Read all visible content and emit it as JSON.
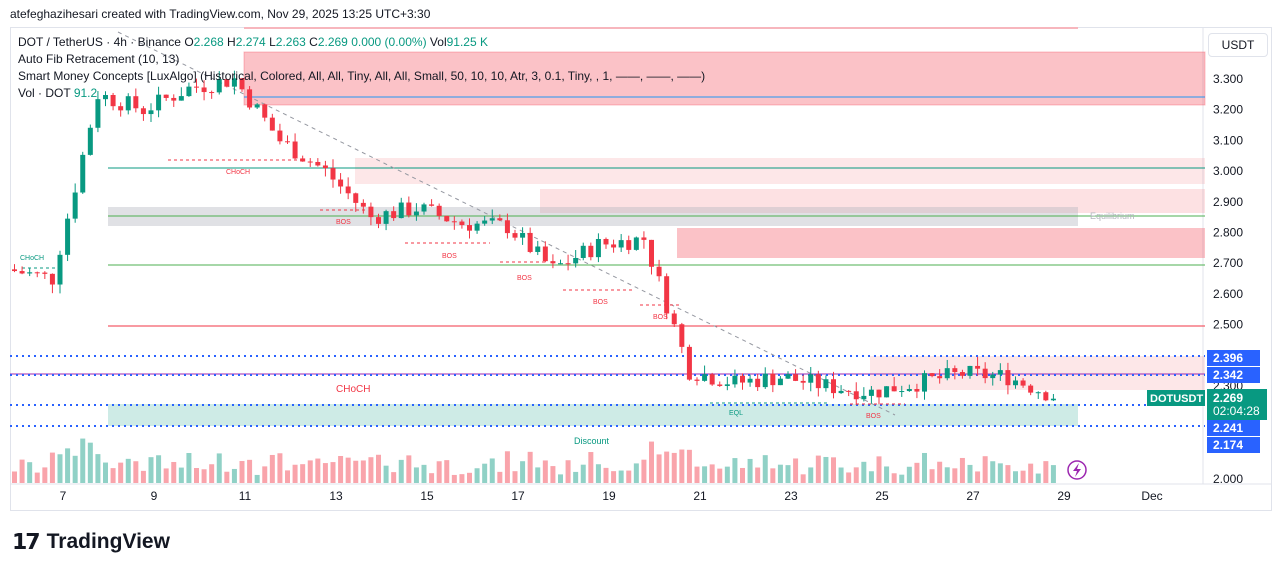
{
  "header": {
    "text": "atefeghazihesari created with TradingView.com, Nov 29, 2025 13:25 UTC+3:30"
  },
  "legend": {
    "symbol": "DOT / TetherUS · 4h · Binance",
    "o_label": "O",
    "o": "2.268",
    "h_label": "H",
    "h": "2.274",
    "l_label": "L",
    "l": "2.263",
    "c_label": "C",
    "c": "2.269",
    "change": "0.000 (0.00%)",
    "vol_label": "Vol",
    "vol": "91.25 K",
    "ind1": "Auto Fib Retracement (10, 13)",
    "ind2": "Smart Money Concepts [LuxAlgo] (Historical, Colored, All, All, Tiny, All, All, Small, 50, 10, 10, Atr, 3, 0.1, Tiny, , 1, ——, ——, ——)",
    "ind3": "Vol · DOT",
    "ind3_val": "91.2"
  },
  "currency": "USDT",
  "price_ticks": [
    "3.300",
    "3.200",
    "3.100",
    "3.000",
    "2.900",
    "2.800",
    "2.700",
    "2.600",
    "2.500",
    "2.300",
    "2.000"
  ],
  "time_ticks": [
    "7",
    "9",
    "11",
    "13",
    "15",
    "17",
    "19",
    "21",
    "23",
    "25",
    "27",
    "29",
    "Dec"
  ],
  "price_badges": [
    {
      "text": "2.396",
      "price": 2.396
    },
    {
      "text": "2.342",
      "price": 2.342
    },
    {
      "text": "2.241",
      "price": 2.241
    },
    {
      "text": "2.174",
      "price": 2.174
    }
  ],
  "current": {
    "ticker": "DOTUSDT",
    "price": "2.269",
    "countdown": "02:04:28",
    "value": 2.269
  },
  "annotations": {
    "choch": "CHoCH",
    "bos": "BOS",
    "eql": "EQL",
    "equilibrium": "Equilibrium",
    "discount": "Discount"
  },
  "colors": {
    "up": "#089981",
    "down": "#f23645",
    "accent": "#2962ff"
  },
  "brand": "TradingView",
  "chart_data": {
    "type": "candlestick",
    "title": "DOT / TetherUS · 4h · Binance",
    "y_axis": "USDT",
    "x_ticks": [
      "7",
      "9",
      "11",
      "13",
      "15",
      "17",
      "19",
      "21",
      "23",
      "25",
      "27",
      "29",
      "Dec"
    ],
    "ohlc_key_points": [
      {
        "date": "6",
        "price": 2.68
      },
      {
        "date": "7",
        "price": 2.65
      },
      {
        "date": "8",
        "price": 3.25
      },
      {
        "date": "9",
        "price": 3.2
      },
      {
        "date": "10",
        "price": 3.27
      },
      {
        "date": "11",
        "price": 3.3
      },
      {
        "date": "12",
        "price": 3.1
      },
      {
        "date": "13",
        "price": 3.0
      },
      {
        "date": "14",
        "price": 2.85
      },
      {
        "date": "15",
        "price": 2.88
      },
      {
        "date": "16",
        "price": 2.83
      },
      {
        "date": "17",
        "price": 2.82
      },
      {
        "date": "18",
        "price": 2.68
      },
      {
        "date": "19",
        "price": 2.76
      },
      {
        "date": "20",
        "price": 2.78
      },
      {
        "date": "21",
        "price": 2.35
      },
      {
        "date": "22",
        "price": 2.31
      },
      {
        "date": "23",
        "price": 2.33
      },
      {
        "date": "24",
        "price": 2.3
      },
      {
        "date": "25",
        "price": 2.28
      },
      {
        "date": "26",
        "price": 2.31
      },
      {
        "date": "27",
        "price": 2.34
      },
      {
        "date": "28",
        "price": 2.33
      },
      {
        "date": "29",
        "price": 2.269
      }
    ]
  }
}
